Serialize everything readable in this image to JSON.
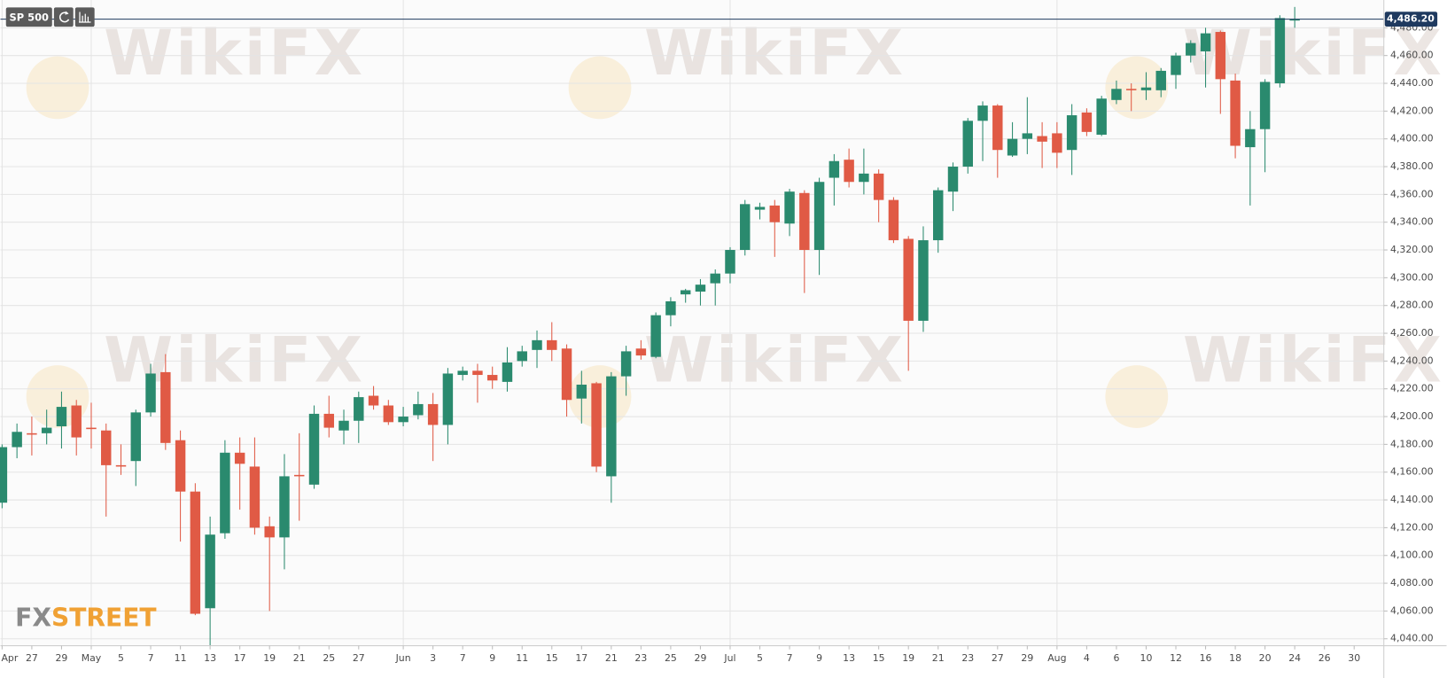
{
  "chart_data": {
    "type": "candlestick",
    "symbol": "SP 500",
    "watermark": "WikiFX",
    "logo": {
      "prefix": "FX",
      "suffix": "STREET"
    },
    "up_color": "#2a8a6e",
    "down_color": "#e05a45",
    "grid": true,
    "categories": [
      "Apr",
      null,
      "27",
      null,
      "29",
      null,
      "May",
      null,
      "5",
      null,
      "7",
      null,
      "11",
      null,
      "13",
      null,
      "17",
      null,
      "19",
      null,
      "21",
      null,
      "25",
      null,
      "27",
      null,
      null,
      "Jun",
      null,
      "3",
      null,
      "7",
      null,
      "9",
      null,
      "11",
      null,
      "15",
      null,
      "17",
      null,
      "21",
      null,
      "23",
      null,
      "25",
      null,
      "29",
      null,
      "Jul",
      null,
      "5",
      null,
      "7",
      null,
      "9",
      null,
      "13",
      null,
      "15",
      null,
      "19",
      null,
      "21",
      null,
      "23",
      null,
      "27",
      null,
      "29",
      null,
      "Aug",
      null,
      "4",
      null,
      "6",
      null,
      "10",
      null,
      "12",
      null,
      "16",
      null,
      "18",
      null,
      "20",
      null,
      "24",
      null,
      "26",
      null,
      "30",
      null
    ],
    "open": [
      4138,
      4178,
      4188,
      4188,
      4193,
      4208,
      4192,
      4190,
      4165,
      4168,
      4203,
      4232,
      4183,
      4146,
      4062,
      4116,
      4174,
      4164,
      4121,
      4113,
      4158,
      4151,
      4202,
      4190,
      4197,
      4215,
      4208,
      4196,
      4201,
      4209,
      4194,
      4230,
      4233,
      4230,
      4225,
      4240,
      4248,
      4255,
      4249,
      4213,
      4224,
      4157,
      4229,
      4249,
      4243,
      4273,
      4288,
      4290,
      4296,
      4303,
      4320,
      4349,
      4352,
      4339,
      4361,
      4320,
      4372,
      4385,
      4369,
      4375,
      4356,
      4328,
      4269,
      4327,
      4362,
      4380,
      4413,
      4424,
      4388,
      4400,
      4402,
      4404,
      4392,
      4419,
      4403,
      4428,
      4436,
      4435,
      4435,
      4446,
      4460,
      4463,
      4477,
      4442,
      4394,
      4407,
      4440,
      4486,
      null,
      null,
      null,
      null,
      null
    ],
    "high": [
      4180,
      4195,
      4200,
      4205,
      4218,
      4212,
      4210,
      4195,
      4180,
      4205,
      4238,
      4245,
      4190,
      4152,
      4128,
      4183,
      4185,
      4185,
      4128,
      4173,
      4188,
      4208,
      4215,
      4205,
      4218,
      4222,
      4212,
      4207,
      4218,
      4217,
      4235,
      4236,
      4238,
      4236,
      4250,
      4251,
      4262,
      4268,
      4252,
      4233,
      4225,
      4232,
      4251,
      4255,
      4275,
      4286,
      4292,
      4299,
      4306,
      4322,
      4356,
      4354,
      4356,
      4364,
      4363,
      4372,
      4389,
      4393,
      4393,
      4378,
      4358,
      4330,
      4337,
      4365,
      4383,
      4415,
      4427,
      4425,
      4412,
      4430,
      4412,
      4412,
      4425,
      4422,
      4431,
      4442,
      4440,
      4448,
      4451,
      4462,
      4471,
      4480,
      4478,
      4447,
      4420,
      4443,
      4489,
      4495,
      null,
      null,
      null,
      null,
      null
    ],
    "low": [
      4134,
      4170,
      4172,
      4180,
      4177,
      4172,
      4177,
      4128,
      4158,
      4150,
      4200,
      4176,
      4110,
      4057,
      4035,
      4112,
      4133,
      4115,
      4060,
      4090,
      4125,
      4148,
      4185,
      4180,
      4181,
      4205,
      4194,
      4193,
      4198,
      4168,
      4180,
      4226,
      4210,
      4220,
      4218,
      4236,
      4235,
      4240,
      4200,
      4195,
      4160,
      4138,
      4215,
      4241,
      4242,
      4265,
      4282,
      4280,
      4280,
      4296,
      4316,
      4342,
      4315,
      4330,
      4289,
      4302,
      4352,
      4365,
      4360,
      4340,
      4325,
      4233,
      4261,
      4318,
      4348,
      4375,
      4384,
      4372,
      4387,
      4389,
      4379,
      4379,
      4374,
      4402,
      4402,
      4425,
      4420,
      4428,
      4430,
      4436,
      4455,
      4437,
      4418,
      4386,
      4352,
      4376,
      4437,
      4480,
      null,
      null,
      null,
      null,
      null
    ],
    "close": [
      4178,
      4189,
      4187,
      4192,
      4207,
      4185,
      4191,
      4165,
      4164,
      4203,
      4231,
      4181,
      4146,
      4058,
      4115,
      4174,
      4166,
      4120,
      4113,
      4157,
      4157,
      4202,
      4192,
      4197,
      4214,
      4208,
      4196,
      4200,
      4209,
      4194,
      4231,
      4233,
      4230,
      4226,
      4239,
      4247,
      4255,
      4248,
      4212,
      4223,
      4164,
      4229,
      4247,
      4244,
      4273,
      4283,
      4291,
      4295,
      4303,
      4320,
      4353,
      4351,
      4340,
      4362,
      4320,
      4369,
      4384,
      4369,
      4375,
      4356,
      4327,
      4269,
      4327,
      4363,
      4380,
      4413,
      4424,
      4392,
      4400,
      4404,
      4398,
      4390,
      4417,
      4405,
      4429,
      4436,
      4435,
      4437,
      4449,
      4460,
      4469,
      4476,
      4443,
      4395,
      4407,
      4441,
      4487,
      4486.2,
      null,
      null,
      null,
      null,
      null
    ],
    "last_price": {
      "value": 4486.2,
      "label": "4,486.20",
      "color": "#1f3a5f"
    },
    "ylim": [
      4035,
      4500
    ],
    "yticks": [
      {
        "value": 4040,
        "label": "4,040.00"
      },
      {
        "value": 4060,
        "label": "4,060.00"
      },
      {
        "value": 4080,
        "label": "4,080.00"
      },
      {
        "value": 4100,
        "label": "4,100.00"
      },
      {
        "value": 4120,
        "label": "4,120.00"
      },
      {
        "value": 4140,
        "label": "4,140.00"
      },
      {
        "value": 4160,
        "label": "4,160.00"
      },
      {
        "value": 4180,
        "label": "4,180.00"
      },
      {
        "value": 4200,
        "label": "4,200.00"
      },
      {
        "value": 4220,
        "label": "4,220.00"
      },
      {
        "value": 4240,
        "label": "4,240.00"
      },
      {
        "value": 4260,
        "label": "4,260.00"
      },
      {
        "value": 4280,
        "label": "4,280.00"
      },
      {
        "value": 4300,
        "label": "4,300.00"
      },
      {
        "value": 4320,
        "label": "4,320.00"
      },
      {
        "value": 4340,
        "label": "4,340.00"
      },
      {
        "value": 4360,
        "label": "4,360.00"
      },
      {
        "value": 4380,
        "label": "4,380.00"
      },
      {
        "value": 4400,
        "label": "4,400.00"
      },
      {
        "value": 4420,
        "label": "4,420.00"
      },
      {
        "value": 4440,
        "label": "4,440.00"
      },
      {
        "value": 4460,
        "label": "4,460.00"
      },
      {
        "value": 4480,
        "label": "4,480.00"
      }
    ]
  }
}
